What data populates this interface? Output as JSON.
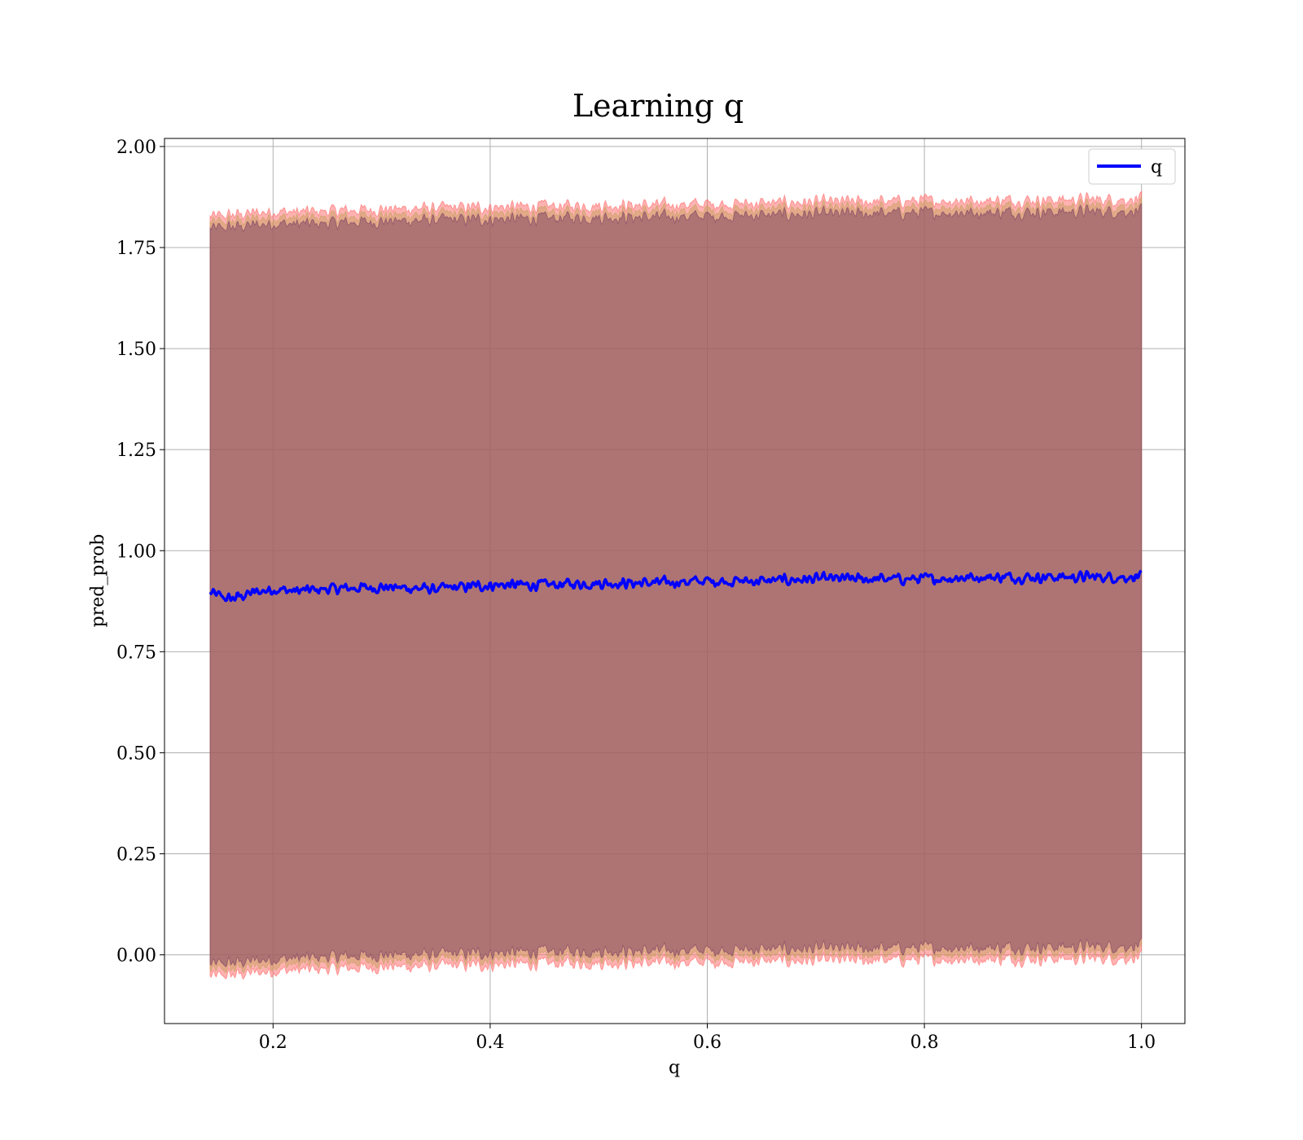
{
  "chart_data": {
    "type": "area",
    "title": "Learning q",
    "xlabel": "q",
    "ylabel": "pred_prob",
    "xlim": [
      0.1,
      1.04
    ],
    "ylim": [
      -0.17,
      2.02
    ],
    "xticks": [
      0.2,
      0.4,
      0.6,
      0.8,
      1.0
    ],
    "xtick_labels": [
      "0.2",
      "0.4",
      "0.6",
      "0.8",
      "1.0"
    ],
    "yticks": [
      0.0,
      0.25,
      0.5,
      0.75,
      1.0,
      1.25,
      1.5,
      1.75,
      2.0
    ],
    "ytick_labels": [
      "0.00",
      "0.25",
      "0.50",
      "0.75",
      "1.00",
      "1.25",
      "1.50",
      "1.75",
      "2.00"
    ],
    "grid": true,
    "legend": {
      "position": "upper-right",
      "entries": [
        "q"
      ]
    },
    "x": [
      0.142,
      0.16,
      0.18,
      0.2,
      0.22,
      0.25,
      0.3,
      0.35,
      0.4,
      0.45,
      0.5,
      0.55,
      0.6,
      0.65,
      0.7,
      0.75,
      0.8,
      0.85,
      0.9,
      0.95,
      1.0
    ],
    "series": [
      {
        "name": "q",
        "type": "line",
        "color": "#0000ff",
        "values": [
          0.895,
          0.88,
          0.895,
          0.905,
          0.9,
          0.905,
          0.91,
          0.905,
          0.915,
          0.915,
          0.92,
          0.92,
          0.925,
          0.925,
          0.93,
          0.93,
          0.93,
          0.935,
          0.935,
          0.935,
          0.935
        ]
      },
      {
        "type": "band",
        "color": "#ff6666",
        "upper": [
          1.825,
          1.83,
          1.835,
          1.84,
          1.838,
          1.84,
          1.845,
          1.848,
          1.85,
          1.852,
          1.855,
          1.855,
          1.858,
          1.86,
          1.862,
          1.864,
          1.866,
          1.867,
          1.868,
          1.869,
          1.87
        ],
        "lower": [
          -0.055,
          -0.05,
          -0.045,
          -0.04,
          -0.038,
          -0.035,
          -0.03,
          -0.028,
          -0.025,
          -0.022,
          -0.02,
          -0.02,
          -0.018,
          -0.016,
          -0.015,
          -0.014,
          -0.012,
          -0.011,
          -0.01,
          -0.009,
          -0.008
        ]
      },
      {
        "type": "band",
        "color": "#c8a060",
        "upper": [
          1.81,
          1.815,
          1.82,
          1.825,
          1.823,
          1.825,
          1.83,
          1.833,
          1.835,
          1.837,
          1.84,
          1.84,
          1.843,
          1.845,
          1.847,
          1.849,
          1.851,
          1.852,
          1.853,
          1.854,
          1.855
        ],
        "lower": [
          -0.04,
          -0.035,
          -0.03,
          -0.025,
          -0.023,
          -0.02,
          -0.015,
          -0.013,
          -0.01,
          -0.007,
          -0.005,
          -0.005,
          -0.003,
          -0.001,
          0.0,
          0.001,
          0.003,
          0.004,
          0.005,
          0.006,
          0.007
        ]
      },
      {
        "type": "band",
        "color": "#7a4060",
        "upper": [
          1.795,
          1.8,
          1.805,
          1.81,
          1.808,
          1.81,
          1.815,
          1.818,
          1.82,
          1.822,
          1.825,
          1.825,
          1.828,
          1.83,
          1.832,
          1.834,
          1.836,
          1.837,
          1.838,
          1.839,
          1.84
        ],
        "lower": [
          -0.025,
          -0.02,
          -0.015,
          -0.01,
          -0.008,
          -0.005,
          0.0,
          0.002,
          0.005,
          0.008,
          0.01,
          0.01,
          0.012,
          0.014,
          0.015,
          0.016,
          0.018,
          0.019,
          0.02,
          0.021,
          0.022
        ]
      }
    ]
  }
}
